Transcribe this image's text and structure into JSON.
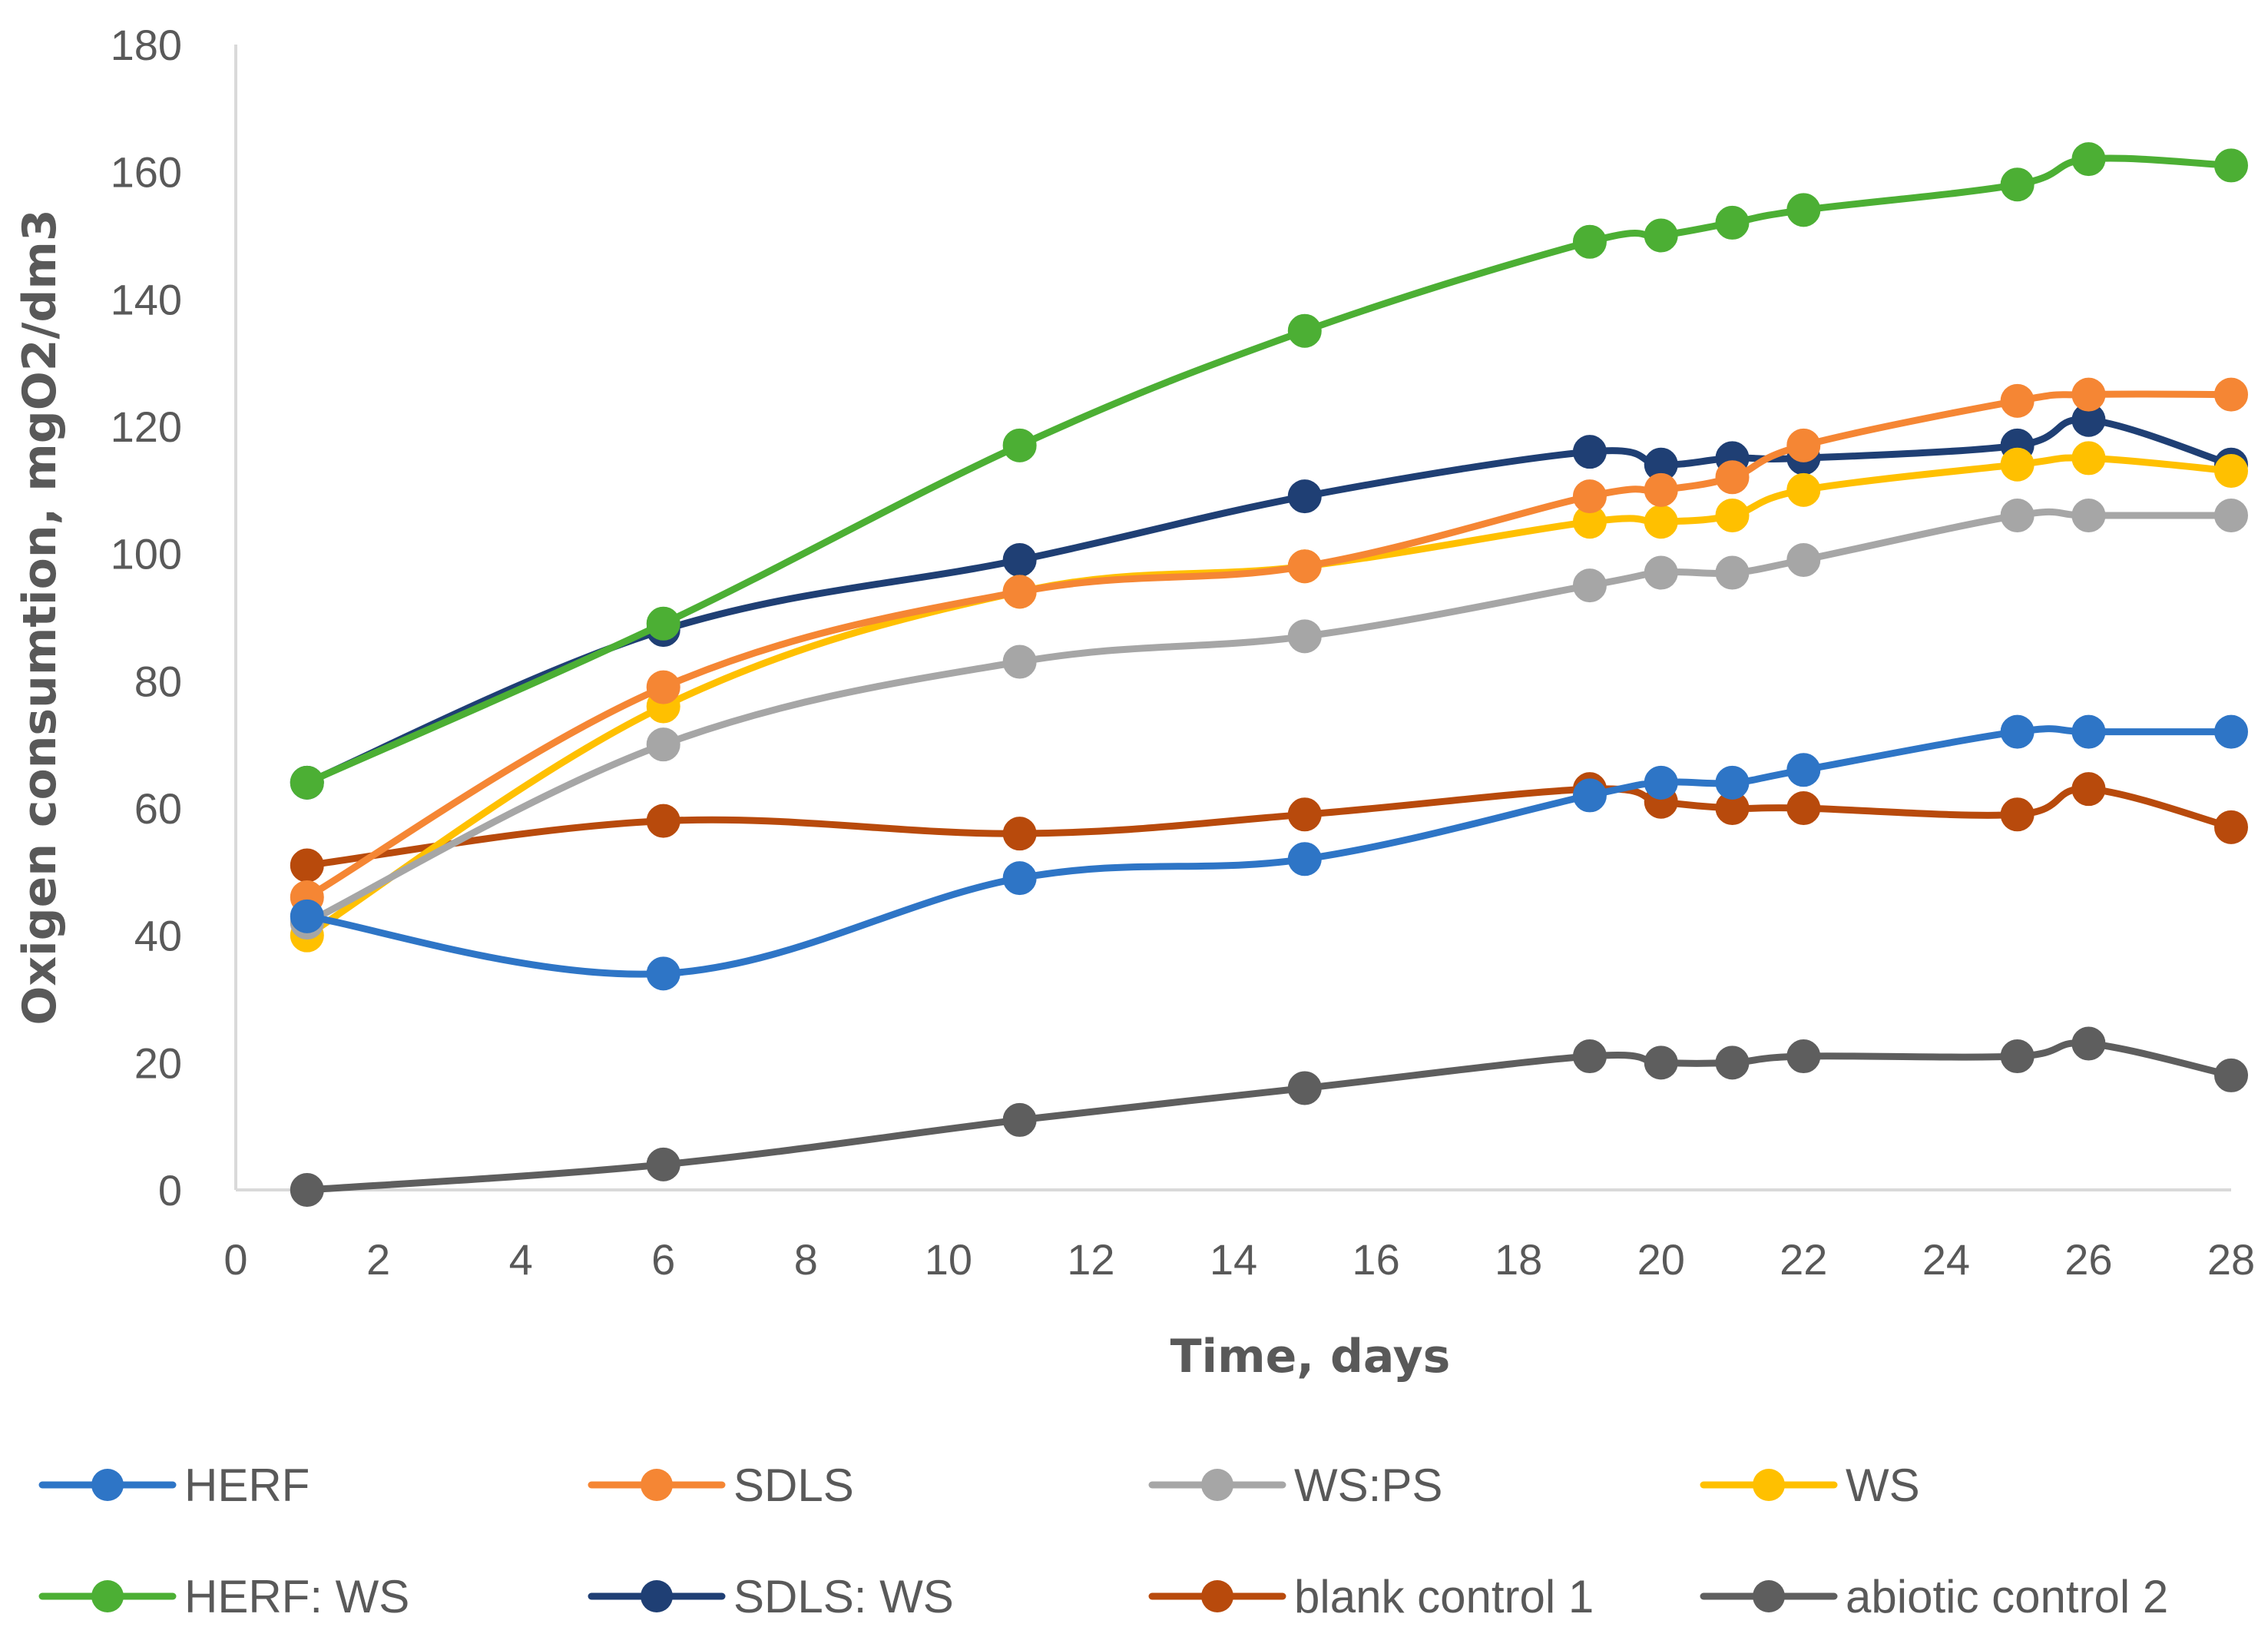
{
  "chart_data": {
    "type": "line",
    "title": "",
    "xlabel": "Time, days",
    "ylabel": "Oxigen consumtion, mgO2/dm3",
    "xlim": [
      0,
      28
    ],
    "ylim": [
      0,
      180
    ],
    "x_ticks": [
      "0",
      "2",
      "4",
      "6",
      "8",
      "10",
      "12",
      "14",
      "16",
      "18",
      "20",
      "22",
      "24",
      "26",
      "28"
    ],
    "y_ticks": [
      "0",
      "20",
      "40",
      "60",
      "80",
      "100",
      "120",
      "140",
      "160",
      "180"
    ],
    "grid": false,
    "legend_position": "bottom",
    "x": [
      1,
      6,
      11,
      15,
      19,
      20,
      21,
      22,
      25,
      26,
      28
    ],
    "series": [
      {
        "name": "HERF",
        "color": "#2E75C6",
        "values": [
          43,
          34,
          49,
          52,
          62,
          64,
          64,
          66,
          72,
          72,
          72
        ]
      },
      {
        "name": "SDLS",
        "color": "#F58634",
        "values": [
          46,
          79,
          94,
          98,
          109,
          110,
          112,
          117,
          124,
          125,
          125
        ]
      },
      {
        "name": "WS:PS",
        "color": "#A6A6A6",
        "values": [
          42,
          70,
          83,
          87,
          95,
          97,
          97,
          99,
          106,
          106,
          106
        ]
      },
      {
        "name": "WS",
        "color": "#FFC000",
        "values": [
          40,
          76,
          94,
          98,
          105,
          105,
          106,
          110,
          114,
          115,
          113
        ]
      },
      {
        "name": "HERF: WS",
        "color": "#4CAF34",
        "values": [
          64,
          89,
          117,
          135,
          149,
          150,
          152,
          154,
          158,
          162,
          161
        ]
      },
      {
        "name": "SDLS: WS",
        "color": "#1F3F74",
        "values": [
          64,
          88,
          99,
          109,
          116,
          114,
          115,
          115,
          117,
          121,
          114
        ]
      },
      {
        "name": "blank control 1",
        "color": "#B84A0C",
        "values": [
          51,
          58,
          56,
          59,
          63,
          61,
          60,
          60,
          59,
          63,
          57
        ]
      },
      {
        "name": "abiotic control 2",
        "color": "#5E5E5E",
        "values": [
          0,
          4,
          11,
          16,
          21,
          20,
          20,
          21,
          21,
          23,
          18
        ]
      }
    ]
  }
}
